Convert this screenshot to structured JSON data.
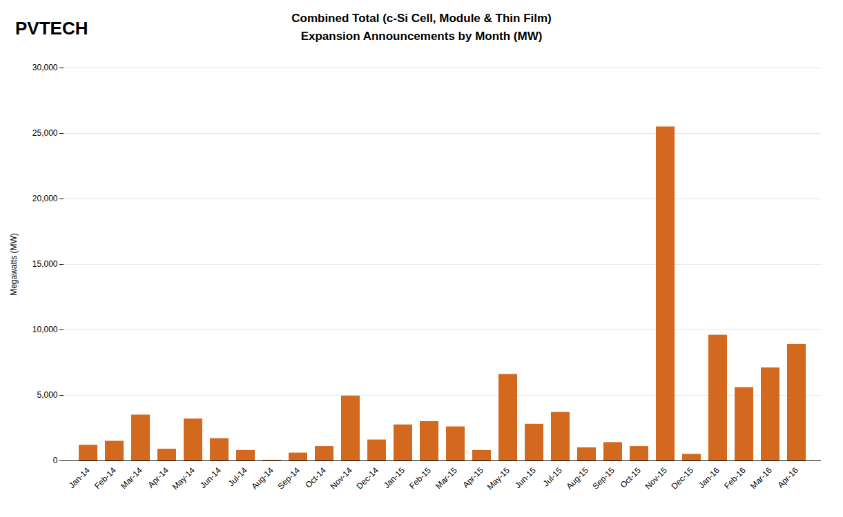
{
  "chart_data": {
    "type": "bar",
    "title": "Combined Total (c-Si Cell, Module & Thin Film)",
    "subtitle": "Expansion Announcements by Month (MW)",
    "annotations": [
      "PVTECH"
    ],
    "ylabel": "Megawatts (MW)",
    "categories": [
      "Jan-14",
      "Feb-14",
      "Mar-14",
      "Apr-14",
      "May-14",
      "Jun-14",
      "Jul-14",
      "Aug-14",
      "Sep-14",
      "Oct-14",
      "Nov-14",
      "Dec-14",
      "Jan-15",
      "Feb-15",
      "Mar-15",
      "Apr-15",
      "May-15",
      "Jun-15",
      "Jul-15",
      "Aug-15",
      "Sep-15",
      "Oct-15",
      "Nov-15",
      "Dec-15",
      "Jan-16",
      "Feb-16",
      "Mar-16",
      "Apr-16"
    ],
    "values": [
      1200,
      1500,
      3500,
      900,
      3200,
      1700,
      800,
      50,
      600,
      1100,
      4950,
      1600,
      2750,
      3000,
      2600,
      800,
      6600,
      2800,
      3700,
      1000,
      1400,
      1100,
      25500,
      500,
      9600,
      5600,
      7100,
      8900
    ],
    "color": "#D2691E",
    "ylim": [
      0,
      30000
    ],
    "yticks": [
      0,
      {
        "value": 5000,
        "label": "5,000"
      },
      {
        "value": 10000,
        "label": "10,000"
      },
      {
        "value": 15000,
        "label": "15,000"
      },
      {
        "value": 20000,
        "label": "20,000"
      },
      {
        "value": 25000,
        "label": "25,000"
      },
      {
        "value": 30000,
        "label": "30,000"
      }
    ],
    "grid": true
  }
}
